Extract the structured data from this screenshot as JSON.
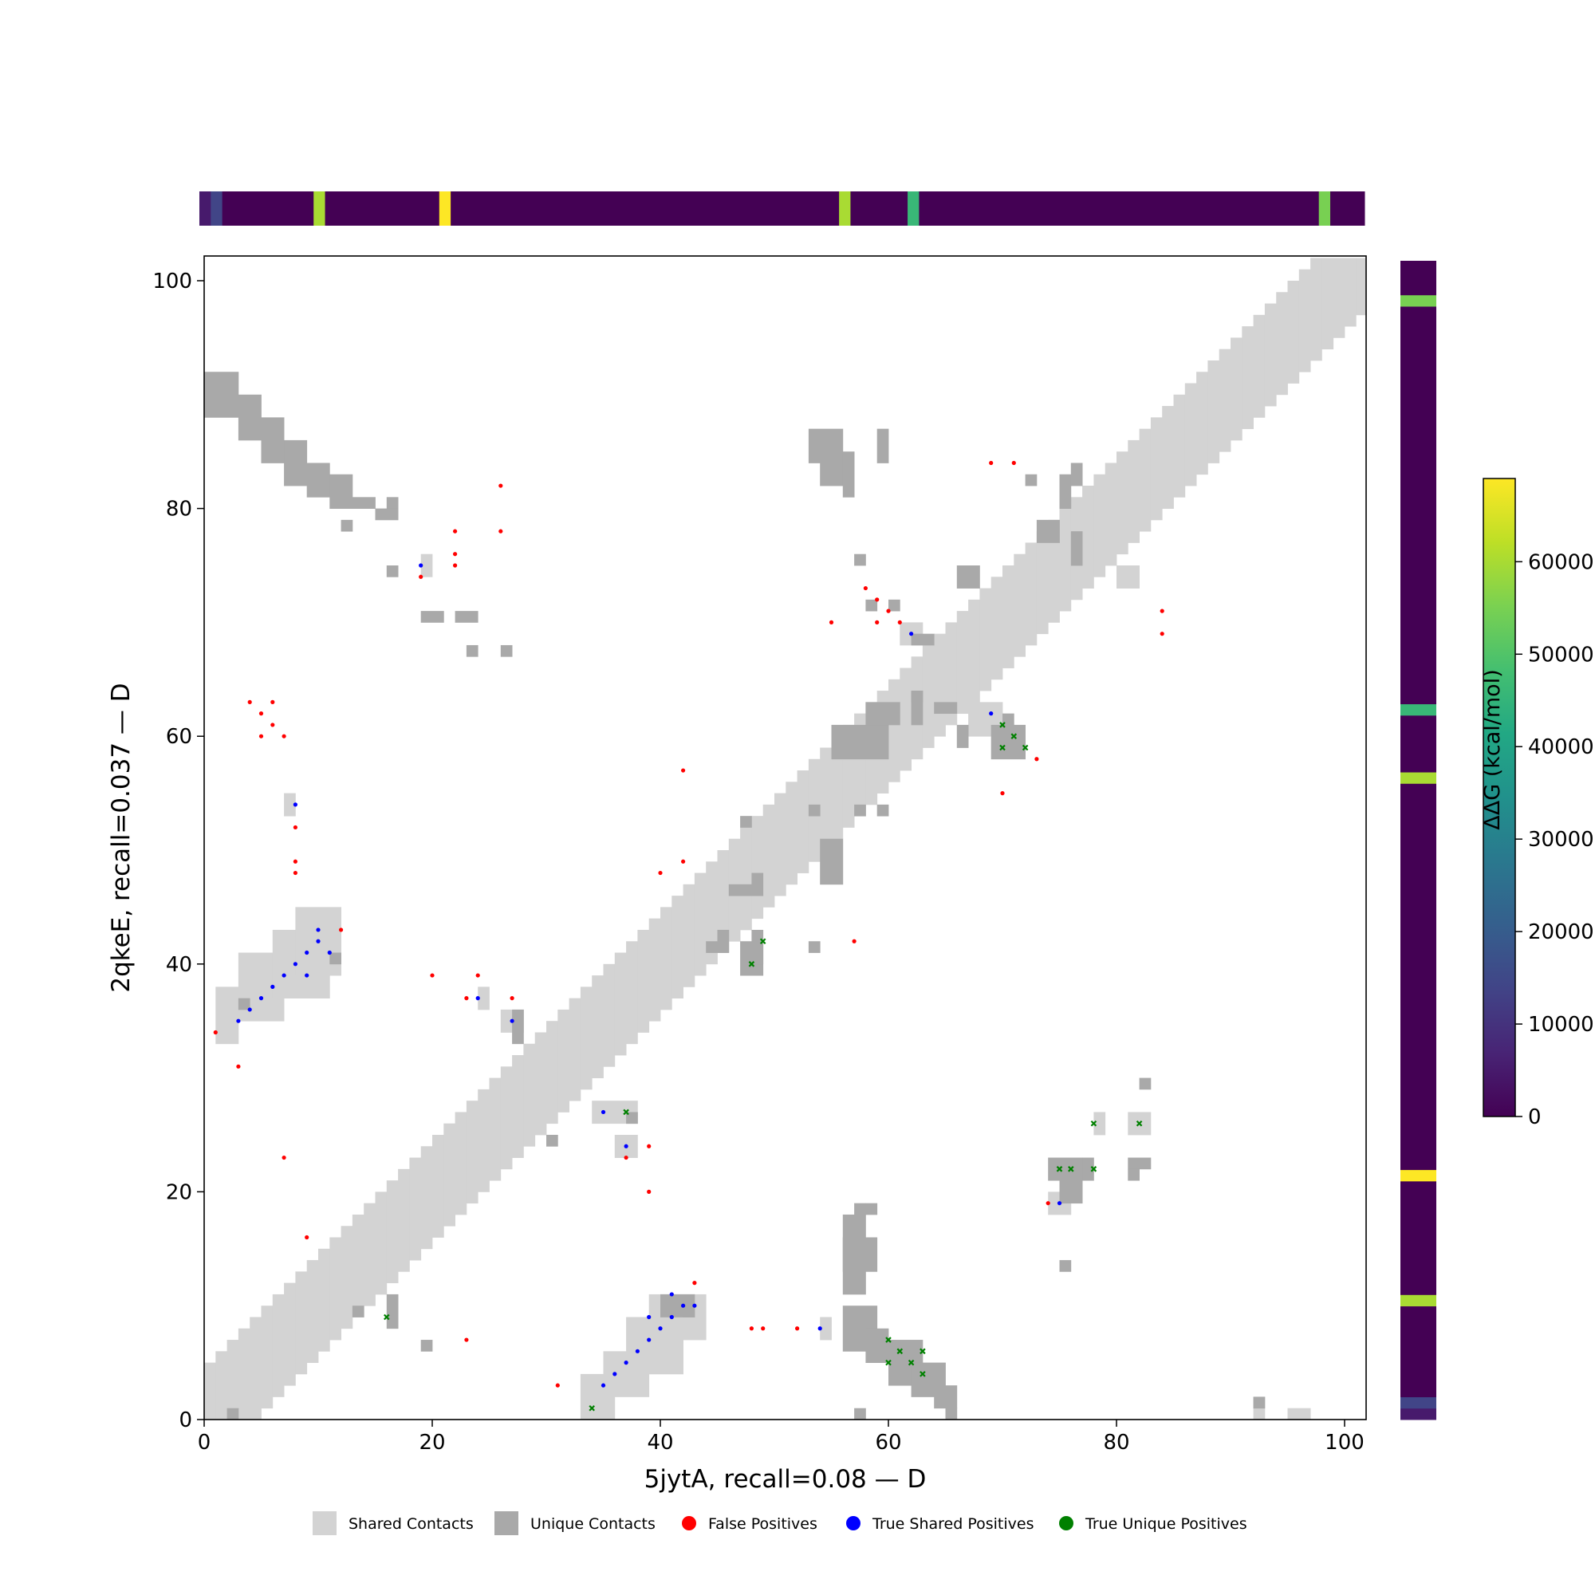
{
  "chart_data": {
    "type": "heatmap",
    "subtype": "contact-map",
    "xlabel": "5jytA, recall=0.08 — D",
    "ylabel": "2qkeE, recall=0.037 — D",
    "xlim": [
      0,
      102
    ],
    "ylim": [
      0,
      102
    ],
    "xticks": [
      0,
      20,
      40,
      60,
      80,
      100
    ],
    "yticks": [
      0,
      20,
      40,
      60,
      80,
      100
    ],
    "colors": {
      "shared": "#d3d3d3",
      "unique": "#a9a9a9",
      "false_positive": "#ff0000",
      "true_shared": "#0000ff",
      "true_unique": "#008000"
    },
    "legend": {
      "placement": "bottom",
      "items": [
        {
          "label": "Shared Contacts",
          "kind": "square",
          "color": "#d3d3d3"
        },
        {
          "label": "Unique Contacts",
          "kind": "square",
          "color": "#a9a9a9"
        },
        {
          "label": "False Positives",
          "kind": "dot",
          "color": "#ff0000"
        },
        {
          "label": "True Shared Positives",
          "kind": "dot",
          "color": "#0000ff"
        },
        {
          "label": "True Unique Positives",
          "kind": "dot",
          "color": "#008000"
        }
      ]
    },
    "colorbar": {
      "label": "ΔΔG (kcal/mol)",
      "colormap": "viridis",
      "range": [
        0,
        69000
      ],
      "ticks": [
        0,
        10000,
        20000,
        30000,
        40000,
        50000,
        60000
      ],
      "tick_labels": [
        "0",
        "10000",
        "20000",
        "30000",
        "40000",
        "50000",
        "60000"
      ]
    },
    "ddg_track": {
      "length": 102,
      "segments": [
        {
          "start": 0,
          "end": 1,
          "value": 5000
        },
        {
          "start": 1,
          "end": 2,
          "value": 14000
        },
        {
          "start": 2,
          "end": 10,
          "value": 0
        },
        {
          "start": 10,
          "end": 11,
          "value": 60000
        },
        {
          "start": 11,
          "end": 21,
          "value": 0
        },
        {
          "start": 21,
          "end": 22,
          "value": 69000
        },
        {
          "start": 22,
          "end": 56,
          "value": 0
        },
        {
          "start": 56,
          "end": 57,
          "value": 60000
        },
        {
          "start": 57,
          "end": 62,
          "value": 0
        },
        {
          "start": 62,
          "end": 63,
          "value": 46000
        },
        {
          "start": 63,
          "end": 98,
          "value": 0
        },
        {
          "start": 98,
          "end": 99,
          "value": 55000
        },
        {
          "start": 99,
          "end": 102,
          "value": 0
        }
      ]
    },
    "shared_band_halfwidth": 4,
    "shared_offdiag": [
      [
        1,
        33,
        3,
        38
      ],
      [
        3,
        35,
        7,
        41
      ],
      [
        6,
        37,
        11,
        43
      ],
      [
        8,
        39,
        12,
        45
      ],
      [
        33,
        0,
        36,
        4
      ],
      [
        35,
        2,
        39,
        6
      ],
      [
        37,
        4,
        42,
        9
      ],
      [
        39,
        7,
        44,
        11
      ],
      [
        34,
        26,
        38,
        28
      ],
      [
        36,
        23,
        38,
        25
      ],
      [
        19,
        74,
        20,
        76
      ],
      [
        24,
        36,
        25,
        38
      ],
      [
        26,
        34,
        28,
        36
      ],
      [
        7,
        53,
        8,
        55
      ],
      [
        54,
        7,
        55,
        9
      ],
      [
        61,
        68,
        63,
        70
      ],
      [
        67,
        60,
        70,
        63
      ],
      [
        74,
        18,
        76,
        20
      ],
      [
        78,
        25,
        79,
        27
      ],
      [
        81,
        25,
        83,
        27
      ],
      [
        34,
        0,
        35,
        2
      ],
      [
        92,
        0,
        93,
        2
      ],
      [
        95,
        0,
        97,
        1
      ],
      [
        80,
        73,
        82,
        75
      ]
    ],
    "unique_blocks": [
      [
        0,
        88,
        3,
        92
      ],
      [
        3,
        86,
        5,
        90
      ],
      [
        5,
        84,
        7,
        88
      ],
      [
        7,
        82,
        9,
        86
      ],
      [
        9,
        81,
        11,
        84
      ],
      [
        11,
        80,
        13,
        83
      ],
      [
        13,
        80,
        15,
        81
      ],
      [
        16,
        80,
        17,
        81
      ],
      [
        15,
        79,
        17,
        80
      ],
      [
        12,
        78,
        13,
        79
      ],
      [
        16,
        74,
        17,
        75
      ],
      [
        19,
        70,
        21,
        71
      ],
      [
        22,
        70,
        24,
        71
      ],
      [
        23,
        67,
        24,
        68
      ],
      [
        26,
        67,
        27,
        68
      ],
      [
        3,
        36,
        4,
        37
      ],
      [
        11,
        40,
        12,
        41
      ],
      [
        27,
        33,
        28,
        36
      ],
      [
        30,
        24,
        31,
        25
      ],
      [
        13,
        9,
        14,
        10
      ],
      [
        16,
        8,
        17,
        11
      ],
      [
        19,
        6,
        20,
        7
      ],
      [
        2,
        0,
        3,
        1
      ],
      [
        37,
        26,
        38,
        27
      ],
      [
        53,
        84,
        56,
        87
      ],
      [
        54,
        82,
        56,
        84
      ],
      [
        56,
        81,
        57,
        85
      ],
      [
        59,
        84,
        60,
        87
      ],
      [
        57,
        75,
        58,
        76
      ],
      [
        58,
        71,
        59,
        72
      ],
      [
        60,
        71,
        61,
        72
      ],
      [
        72,
        82,
        73,
        83
      ],
      [
        75,
        80,
        76,
        83
      ],
      [
        76,
        82,
        77,
        84
      ],
      [
        73,
        77,
        75,
        79
      ],
      [
        76,
        75,
        77,
        78
      ],
      [
        66,
        73,
        68,
        75
      ],
      [
        62,
        68,
        64,
        69
      ],
      [
        57,
        0,
        58,
        0
      ],
      [
        56,
        11,
        58,
        18
      ],
      [
        57,
        14,
        58,
        15
      ],
      [
        56,
        13,
        59,
        16
      ],
      [
        57,
        18,
        58,
        19
      ],
      [
        56,
        6,
        59,
        10
      ],
      [
        58,
        5,
        60,
        8
      ],
      [
        60,
        3,
        63,
        7
      ],
      [
        62,
        2,
        65,
        5
      ],
      [
        64,
        1,
        66,
        3
      ],
      [
        65,
        0,
        66,
        1
      ],
      [
        40,
        9,
        43,
        11
      ],
      [
        42,
        9,
        43,
        10
      ],
      [
        44,
        41,
        45,
        42
      ],
      [
        45,
        41,
        46,
        43
      ],
      [
        47,
        39,
        49,
        42
      ],
      [
        48,
        40,
        49,
        43
      ],
      [
        53,
        41,
        54,
        42
      ],
      [
        46,
        46,
        48,
        47
      ],
      [
        48,
        46,
        49,
        48
      ],
      [
        54,
        47,
        56,
        51
      ],
      [
        53,
        53,
        54,
        54
      ],
      [
        57,
        53,
        58,
        54
      ],
      [
        59,
        53,
        60,
        54
      ],
      [
        47,
        52,
        48,
        53
      ],
      [
        55,
        58,
        60,
        61
      ],
      [
        58,
        61,
        61,
        63
      ],
      [
        62,
        61,
        63,
        64
      ],
      [
        64,
        62,
        66,
        63
      ],
      [
        66,
        59,
        67,
        61
      ],
      [
        69,
        58,
        72,
        61
      ],
      [
        70,
        60,
        71,
        62
      ],
      [
        74,
        21,
        77,
        23
      ],
      [
        75,
        19,
        77,
        21
      ],
      [
        75,
        13,
        76,
        14
      ],
      [
        77,
        21,
        78,
        23
      ],
      [
        81,
        22,
        83,
        23
      ],
      [
        81,
        21,
        82,
        22
      ],
      [
        82,
        29,
        83,
        30
      ],
      [
        58,
        18,
        59,
        19
      ],
      [
        62,
        63,
        63,
        64
      ],
      [
        92,
        1,
        93,
        2
      ]
    ],
    "false_positives": [
      [
        1,
        34
      ],
      [
        3,
        31
      ],
      [
        4,
        63
      ],
      [
        5,
        62
      ],
      [
        6,
        63
      ],
      [
        5,
        60
      ],
      [
        6,
        61
      ],
      [
        7,
        60
      ],
      [
        7,
        23
      ],
      [
        8,
        52
      ],
      [
        8,
        49
      ],
      [
        8,
        48
      ],
      [
        9,
        16
      ],
      [
        12,
        43
      ],
      [
        19,
        74
      ],
      [
        20,
        39
      ],
      [
        22,
        78
      ],
      [
        22,
        76
      ],
      [
        22,
        75
      ],
      [
        23,
        37
      ],
      [
        23,
        7
      ],
      [
        24,
        39
      ],
      [
        26,
        82
      ],
      [
        26,
        78
      ],
      [
        27,
        37
      ],
      [
        31,
        3
      ],
      [
        37,
        23
      ],
      [
        39,
        24
      ],
      [
        39,
        20
      ],
      [
        40,
        48
      ],
      [
        42,
        57
      ],
      [
        42,
        49
      ],
      [
        43,
        12
      ],
      [
        48,
        8
      ],
      [
        49,
        8
      ],
      [
        52,
        8
      ],
      [
        55,
        70
      ],
      [
        57,
        42
      ],
      [
        58,
        73
      ],
      [
        59,
        72
      ],
      [
        59,
        70
      ],
      [
        60,
        71
      ],
      [
        61,
        70
      ],
      [
        69,
        84
      ],
      [
        71,
        84
      ],
      [
        70,
        55
      ],
      [
        73,
        58
      ],
      [
        74,
        19
      ],
      [
        84,
        71
      ],
      [
        84,
        69
      ]
    ],
    "true_shared": [
      [
        3,
        35
      ],
      [
        4,
        36
      ],
      [
        5,
        37
      ],
      [
        6,
        38
      ],
      [
        7,
        39
      ],
      [
        8,
        40
      ],
      [
        9,
        41
      ],
      [
        9,
        39
      ],
      [
        10,
        42
      ],
      [
        10,
        43
      ],
      [
        11,
        41
      ],
      [
        8,
        54
      ],
      [
        19,
        75
      ],
      [
        24,
        37
      ],
      [
        27,
        35
      ],
      [
        35,
        27
      ],
      [
        37,
        24
      ],
      [
        35,
        3
      ],
      [
        36,
        4
      ],
      [
        37,
        5
      ],
      [
        38,
        6
      ],
      [
        39,
        7
      ],
      [
        40,
        8
      ],
      [
        39,
        9
      ],
      [
        41,
        9
      ],
      [
        41,
        11
      ],
      [
        42,
        10
      ],
      [
        43,
        10
      ],
      [
        54,
        8
      ],
      [
        62,
        69
      ],
      [
        69,
        62
      ],
      [
        75,
        19
      ]
    ],
    "true_unique": [
      [
        16,
        9
      ],
      [
        34,
        1
      ],
      [
        37,
        27
      ],
      [
        48,
        40
      ],
      [
        49,
        42
      ],
      [
        60,
        7
      ],
      [
        60,
        5
      ],
      [
        61,
        6
      ],
      [
        62,
        5
      ],
      [
        63,
        6
      ],
      [
        63,
        4
      ],
      [
        70,
        61
      ],
      [
        70,
        59
      ],
      [
        71,
        60
      ],
      [
        72,
        59
      ],
      [
        75,
        22
      ],
      [
        76,
        22
      ],
      [
        78,
        22
      ],
      [
        78,
        26
      ],
      [
        82,
        26
      ]
    ]
  }
}
